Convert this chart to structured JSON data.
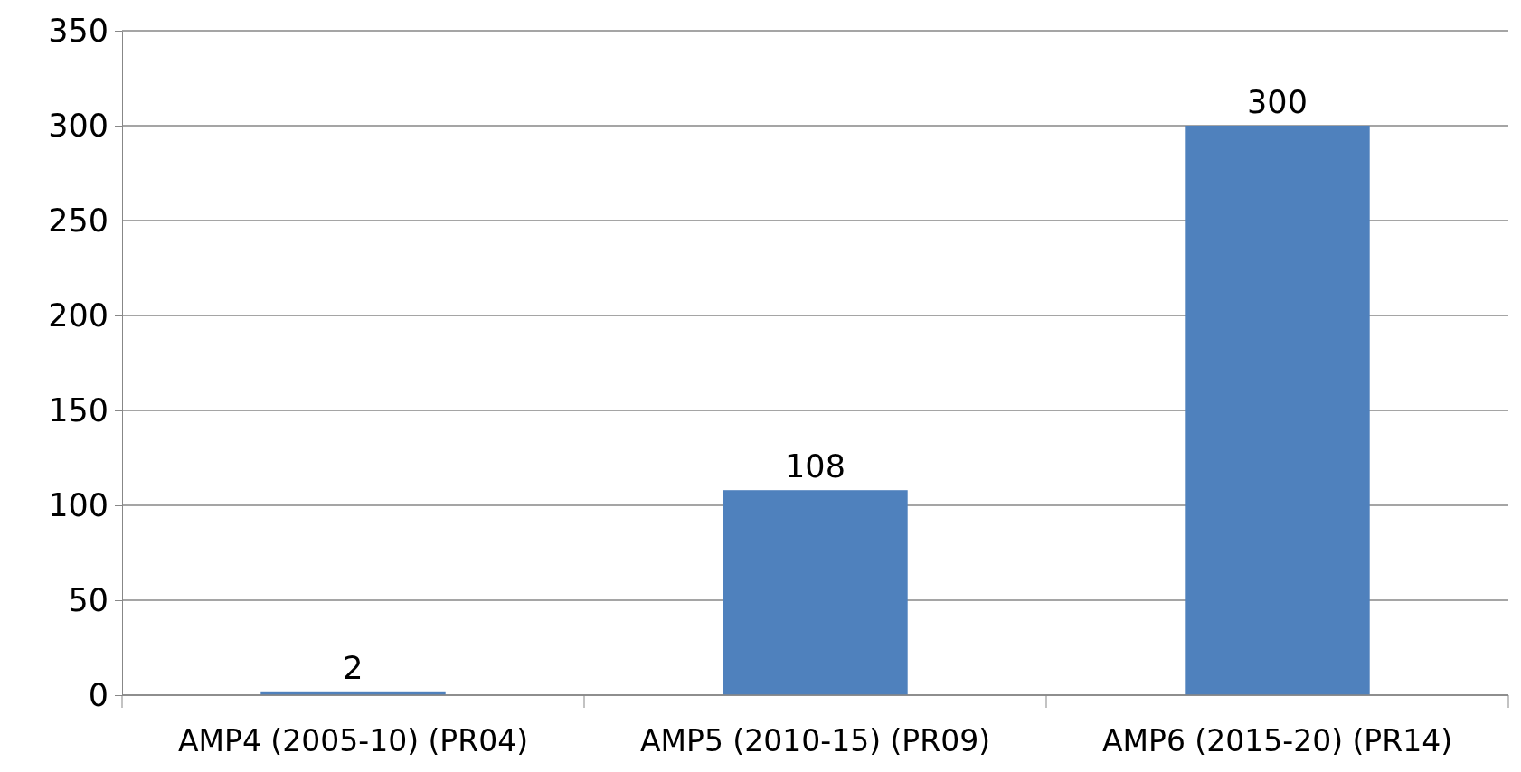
{
  "chart_data": {
    "type": "bar",
    "categories": [
      "AMP4 (2005-10) (PR04)",
      "AMP5 (2010-15) (PR09)",
      "AMP6 (2015-20) (PR14)"
    ],
    "values": [
      2,
      108,
      300
    ],
    "color": "#4f81bd",
    "ylim": [
      0,
      350
    ],
    "yticks": [
      0,
      50,
      100,
      150,
      200,
      250,
      300,
      350
    ],
    "grid": "y",
    "data_labels": true
  }
}
